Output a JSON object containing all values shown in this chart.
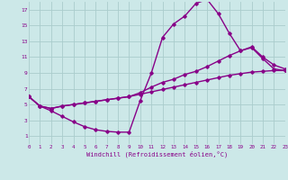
{
  "bg_color": "#cce8e8",
  "grid_color": "#aacccc",
  "line_color": "#880088",
  "xlabel": "Windchill (Refroidissement éolien,°C)",
  "xlim": [
    0,
    23
  ],
  "ylim": [
    0,
    18
  ],
  "xticks": [
    0,
    1,
    2,
    3,
    4,
    5,
    6,
    7,
    8,
    9,
    10,
    11,
    12,
    13,
    14,
    15,
    16,
    17,
    18,
    19,
    20,
    21,
    22,
    23
  ],
  "yticks": [
    1,
    3,
    5,
    7,
    9,
    11,
    13,
    15,
    17
  ],
  "curve_top_x": [
    0,
    1,
    2,
    3,
    4,
    5,
    6,
    7,
    8,
    9,
    10,
    11,
    12,
    13,
    14,
    15,
    16,
    17,
    18,
    19,
    20,
    21,
    22,
    23
  ],
  "curve_top_y": [
    6.0,
    4.8,
    4.2,
    3.5,
    2.8,
    2.2,
    1.8,
    1.6,
    1.5,
    1.5,
    5.5,
    9.0,
    13.5,
    15.2,
    16.2,
    17.8,
    18.3,
    16.5,
    14.0,
    11.8,
    12.2,
    10.8,
    9.5,
    9.3
  ],
  "curve_mid_x": [
    0,
    1,
    2,
    3,
    4,
    5,
    6,
    7,
    8,
    9,
    10,
    11,
    12,
    13,
    14,
    15,
    16,
    17,
    18,
    19,
    20,
    21,
    22,
    23
  ],
  "curve_mid_y": [
    6.0,
    4.8,
    4.5,
    4.8,
    5.0,
    5.2,
    5.4,
    5.6,
    5.8,
    6.0,
    6.5,
    7.2,
    7.8,
    8.2,
    8.8,
    9.2,
    9.8,
    10.5,
    11.2,
    11.8,
    12.3,
    11.0,
    10.0,
    9.5
  ],
  "curve_low_x": [
    0,
    1,
    2,
    3,
    4,
    5,
    6,
    7,
    8,
    9,
    10,
    11,
    12,
    13,
    14,
    15,
    16,
    17,
    18,
    19,
    20,
    21,
    22,
    23
  ],
  "curve_low_y": [
    6.0,
    4.8,
    4.5,
    4.8,
    5.0,
    5.2,
    5.4,
    5.6,
    5.8,
    6.0,
    6.3,
    6.6,
    6.9,
    7.2,
    7.5,
    7.8,
    8.1,
    8.4,
    8.7,
    8.9,
    9.1,
    9.2,
    9.3,
    9.3
  ],
  "marker": "D",
  "marker_size": 1.8,
  "line_width": 1.0
}
